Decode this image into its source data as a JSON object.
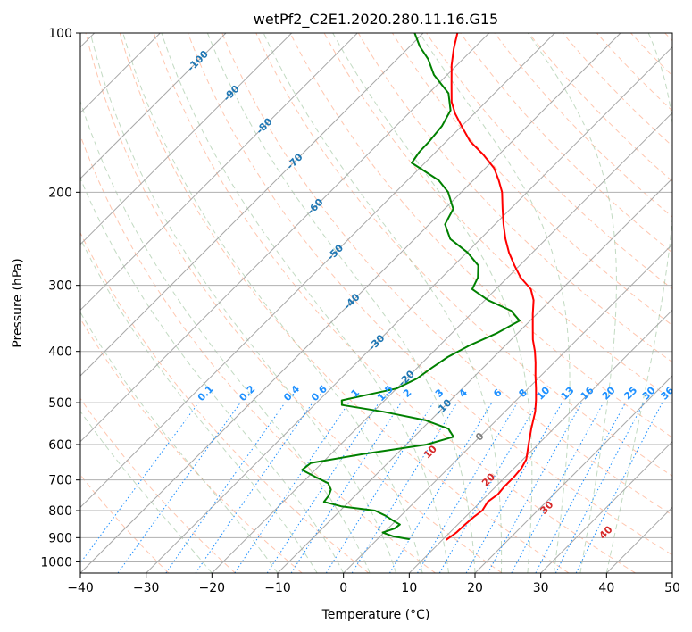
{
  "chart_data": {
    "type": "line",
    "subtype": "skew-T log-P diagram",
    "title": "wetPf2_C2E1.2020.280.11.16.G15",
    "xlabel": "Temperature (°C)",
    "ylabel": "Pressure (hPa)",
    "xlim": [
      -40,
      50
    ],
    "ylim": [
      1050,
      100
    ],
    "yscale": "log",
    "xticks": [
      -40,
      -30,
      -20,
      -10,
      0,
      10,
      20,
      30,
      40,
      50
    ],
    "yticks": [
      100,
      200,
      300,
      400,
      500,
      600,
      700,
      800,
      900,
      1000
    ],
    "grid": true,
    "colors": {
      "temperature": "#ff0000",
      "dewpoint": "#008000",
      "isotherm_label": "#1f77b4",
      "mixing_ratio": "#1e90ff",
      "moist_adiabat_label": "#d62728",
      "dry_adiabat": "#ffa07a",
      "moist_adiabat": "#8fbc8f"
    },
    "series": [
      {
        "key": "temperature",
        "color": "#ff0000",
        "points": [
          [
            908,
            10.6
          ],
          [
            880,
            11.0
          ],
          [
            850,
            11.1
          ],
          [
            820,
            11.3
          ],
          [
            800,
            11.6
          ],
          [
            770,
            11.1
          ],
          [
            745,
            11.5
          ],
          [
            720,
            11.3
          ],
          [
            690,
            11.3
          ],
          [
            665,
            11.1
          ],
          [
            640,
            10.5
          ],
          [
            600,
            8.6
          ],
          [
            560,
            6.6
          ],
          [
            520,
            4.6
          ],
          [
            495,
            3.0
          ],
          [
            470,
            1.2
          ],
          [
            445,
            -0.8
          ],
          [
            420,
            -2.8
          ],
          [
            400,
            -4.6
          ],
          [
            380,
            -6.7
          ],
          [
            360,
            -8.6
          ],
          [
            340,
            -10.6
          ],
          [
            320,
            -12.6
          ],
          [
            305,
            -14.7
          ],
          [
            290,
            -18.0
          ],
          [
            275,
            -20.8
          ],
          [
            260,
            -23.6
          ],
          [
            245,
            -26.2
          ],
          [
            230,
            -28.7
          ],
          [
            215,
            -31.2
          ],
          [
            200,
            -33.8
          ],
          [
            190,
            -36.1
          ],
          [
            180,
            -38.7
          ],
          [
            170,
            -42.3
          ],
          [
            160,
            -46.5
          ],
          [
            150,
            -50.0
          ],
          [
            142,
            -52.9
          ],
          [
            135,
            -55.2
          ],
          [
            125,
            -57.9
          ],
          [
            115,
            -60.8
          ],
          [
            107,
            -63.0
          ],
          [
            100,
            -64.8
          ]
        ]
      },
      {
        "key": "dewpoint",
        "color": "#008000",
        "points": [
          [
            906,
            4.8
          ],
          [
            895,
            2.0
          ],
          [
            880,
            -0.2
          ],
          [
            865,
            1.0
          ],
          [
            850,
            1.2
          ],
          [
            835,
            -0.5
          ],
          [
            818,
            -2.3
          ],
          [
            800,
            -4.7
          ],
          [
            785,
            -10.5
          ],
          [
            770,
            -13.8
          ],
          [
            750,
            -14.0
          ],
          [
            730,
            -14.6
          ],
          [
            710,
            -16.0
          ],
          [
            690,
            -19.0
          ],
          [
            670,
            -22.0
          ],
          [
            650,
            -21.7
          ],
          [
            625,
            -15.0
          ],
          [
            600,
            -6.9
          ],
          [
            580,
            -4.0
          ],
          [
            560,
            -6.0
          ],
          [
            540,
            -10.7
          ],
          [
            520,
            -18.5
          ],
          [
            505,
            -25.8
          ],
          [
            495,
            -26.5
          ],
          [
            485,
            -24.0
          ],
          [
            470,
            -20.0
          ],
          [
            450,
            -18.4
          ],
          [
            430,
            -17.8
          ],
          [
            410,
            -17.0
          ],
          [
            390,
            -15.5
          ],
          [
            370,
            -13.2
          ],
          [
            350,
            -11.6
          ],
          [
            335,
            -14.4
          ],
          [
            320,
            -19.5
          ],
          [
            305,
            -23.6
          ],
          [
            290,
            -24.5
          ],
          [
            275,
            -26.3
          ],
          [
            260,
            -29.9
          ],
          [
            245,
            -34.6
          ],
          [
            230,
            -37.6
          ],
          [
            215,
            -38.7
          ],
          [
            200,
            -42.0
          ],
          [
            190,
            -45.2
          ],
          [
            182,
            -49.0
          ],
          [
            176,
            -52.0
          ],
          [
            168,
            -52.5
          ],
          [
            160,
            -52.6
          ],
          [
            150,
            -53.0
          ],
          [
            140,
            -54.1
          ],
          [
            130,
            -57.0
          ],
          [
            120,
            -62.0
          ],
          [
            112,
            -65.3
          ],
          [
            106,
            -68.5
          ],
          [
            100,
            -71.3
          ]
        ]
      }
    ],
    "isotherm_labels": [
      -100,
      -90,
      -80,
      -70,
      -60,
      -50,
      -40,
      -30,
      -20,
      -10,
      0
    ],
    "mixing_ratio_labels": [
      "0.1",
      "0.2",
      "0.4",
      "0.6",
      "1",
      "1.5",
      "2",
      "3",
      "4",
      "6",
      "8",
      "10",
      "13",
      "16",
      "20",
      "25",
      "30",
      "36"
    ],
    "moist_adiabat_labels": [
      "10",
      "20",
      "30",
      "40"
    ]
  }
}
